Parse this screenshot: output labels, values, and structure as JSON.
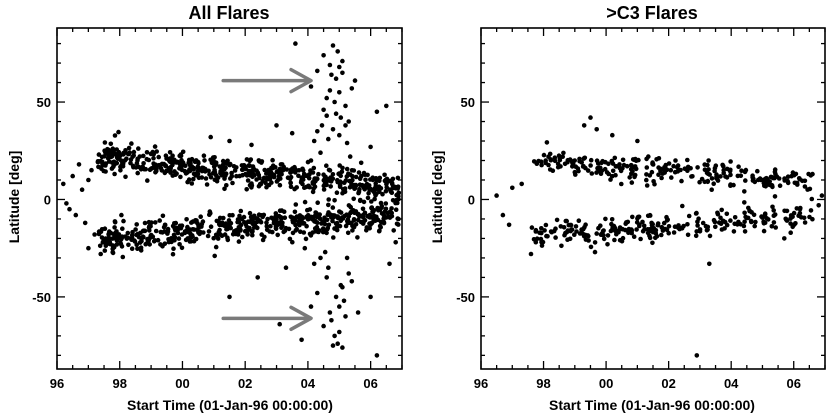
{
  "chart_data": [
    {
      "type": "scatter",
      "title": "All Flares",
      "xlabel": "Start Time (01-Jan-96 00:00:00)",
      "ylabel": "Latitude [deg]",
      "xlim": [
        1996,
        2007
      ],
      "ylim": [
        -87,
        88
      ],
      "xticks": [
        1996,
        1998,
        2000,
        2002,
        2004,
        2006
      ],
      "xtick_labels": [
        "96",
        "98",
        "00",
        "02",
        "04",
        "06"
      ],
      "yticks": [
        -50,
        0,
        50
      ],
      "ytick_labels": [
        "-50",
        "0",
        "50"
      ],
      "grid": false,
      "arrow_color": "#7a7a7a",
      "annotations": [
        {
          "kind": "arrow",
          "from": [
            2001.3,
            61
          ],
          "to": [
            2004.1,
            61
          ]
        },
        {
          "kind": "arrow",
          "from": [
            2001.3,
            -61
          ],
          "to": [
            2004.1,
            -61
          ]
        }
      ],
      "bands": [
        {
          "x0": 1997.3,
          "x1": 2006.9,
          "y0": 22,
          "y1": 6,
          "spread": 7,
          "n": 560,
          "seed": 11
        },
        {
          "x0": 1997.3,
          "x1": 2006.9,
          "y0": -20,
          "y1": -7,
          "spread": 7,
          "n": 560,
          "seed": 23
        }
      ],
      "points": [
        [
          1996.2,
          8
        ],
        [
          1996.4,
          -5
        ],
        [
          1996.5,
          12
        ],
        [
          1996.6,
          -8
        ],
        [
          1996.3,
          -2
        ],
        [
          1996.8,
          5
        ],
        [
          1997.0,
          10
        ],
        [
          1996.9,
          -12
        ],
        [
          1997.1,
          15
        ],
        [
          1997.2,
          -18
        ],
        [
          1996.7,
          18
        ],
        [
          1997.0,
          -25
        ],
        [
          2003.6,
          80
        ],
        [
          2004.1,
          58
        ],
        [
          2004.3,
          66
        ],
        [
          2004.5,
          74
        ],
        [
          2004.6,
          52
        ],
        [
          2004.7,
          69
        ],
        [
          2004.8,
          79
        ],
        [
          2004.9,
          62
        ],
        [
          2005.0,
          55
        ],
        [
          2005.1,
          71
        ],
        [
          2005.2,
          48
        ],
        [
          2005.3,
          40
        ],
        [
          2004.6,
          43
        ],
        [
          2004.8,
          36
        ],
        [
          2004.2,
          30
        ],
        [
          2005.4,
          57
        ],
        [
          2004.9,
          44
        ],
        [
          2005.0,
          33
        ],
        [
          2004.4,
          24
        ],
        [
          2004.95,
          76
        ],
        [
          2005.1,
          65
        ],
        [
          2004.7,
          56
        ],
        [
          2005.2,
          38
        ],
        [
          2004.5,
          46
        ],
        [
          2004.85,
          50
        ],
        [
          2005.05,
          42
        ],
        [
          2004.65,
          31
        ],
        [
          2005.25,
          29
        ],
        [
          2004.75,
          64
        ],
        [
          2005.0,
          68
        ],
        [
          2004.45,
          38
        ],
        [
          2005.5,
          61
        ],
        [
          2006.2,
          45
        ],
        [
          2006.0,
          27
        ],
        [
          2004.1,
          20
        ],
        [
          2005.35,
          22
        ],
        [
          2004.3,
          35
        ],
        [
          2003.8,
          -72
        ],
        [
          2004.1,
          -55
        ],
        [
          2004.3,
          -48
        ],
        [
          2004.5,
          -65
        ],
        [
          2004.6,
          -40
        ],
        [
          2004.7,
          -58
        ],
        [
          2004.8,
          -75
        ],
        [
          2004.9,
          -50
        ],
        [
          2005.0,
          -68
        ],
        [
          2005.1,
          -45
        ],
        [
          2005.2,
          -60
        ],
        [
          2005.3,
          -38
        ],
        [
          2004.4,
          -30
        ],
        [
          2005.0,
          -55
        ],
        [
          2004.85,
          -70
        ],
        [
          2005.05,
          -44
        ],
        [
          2004.65,
          -35
        ],
        [
          2005.15,
          -52
        ],
        [
          2004.55,
          -27
        ],
        [
          2005.25,
          -30
        ],
        [
          2004.75,
          -62
        ],
        [
          2005.1,
          -76
        ],
        [
          2004.95,
          -74
        ],
        [
          2004.2,
          -33
        ],
        [
          2005.4,
          -42
        ],
        [
          2003.9,
          -25
        ],
        [
          2005.6,
          -58
        ],
        [
          2006.0,
          -50
        ],
        [
          2006.2,
          -80
        ],
        [
          2001.5,
          -50
        ],
        [
          2003.1,
          -64
        ],
        [
          2003.3,
          -35
        ],
        [
          2006.6,
          -33
        ],
        [
          2002.4,
          -40
        ],
        [
          2000.9,
          32
        ],
        [
          2001.5,
          30
        ],
        [
          2003.0,
          38
        ],
        [
          2003.5,
          34
        ],
        [
          2006.5,
          48
        ],
        [
          2002.2,
          28
        ],
        [
          2006.8,
          -22
        ]
      ]
    },
    {
      "type": "scatter",
      "title": ">C3 Flares",
      "xlabel": "Start Time (01-Jan-96 00:00:00)",
      "ylabel": "Latitude [deg]",
      "xlim": [
        1996,
        2007
      ],
      "ylim": [
        -87,
        88
      ],
      "xticks": [
        1996,
        1998,
        2000,
        2002,
        2004,
        2006
      ],
      "xtick_labels": [
        "96",
        "98",
        "00",
        "02",
        "04",
        "06"
      ],
      "yticks": [
        -50,
        0,
        50
      ],
      "ytick_labels": [
        "-50",
        "0",
        "50"
      ],
      "grid": false,
      "annotations": [],
      "bands": [
        {
          "x0": 1997.6,
          "x1": 2006.6,
          "y0": 20,
          "y1": 8,
          "spread": 6,
          "n": 260,
          "seed": 37
        },
        {
          "x0": 1997.6,
          "x1": 2006.6,
          "y0": -19,
          "y1": -8,
          "spread": 6,
          "n": 260,
          "seed": 51
        }
      ],
      "points": [
        [
          1996.5,
          2
        ],
        [
          1996.7,
          -8
        ],
        [
          1996.9,
          -13
        ],
        [
          1997.0,
          6
        ],
        [
          1997.3,
          8
        ],
        [
          1997.6,
          -28
        ],
        [
          1999.3,
          38
        ],
        [
          1999.5,
          42
        ],
        [
          1999.7,
          36
        ],
        [
          2000.2,
          33
        ],
        [
          2001.0,
          30
        ],
        [
          2002.9,
          -80
        ],
        [
          2003.3,
          -33
        ],
        [
          2006.8,
          -3
        ],
        [
          2006.9,
          2
        ],
        [
          2006.6,
          13
        ],
        [
          2005.7,
          -20
        ],
        [
          2006.2,
          -5
        ]
      ]
    }
  ]
}
